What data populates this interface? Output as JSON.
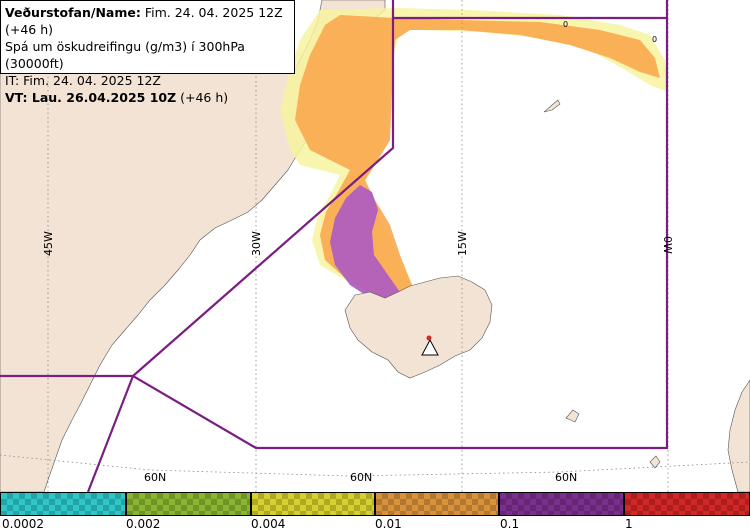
{
  "info": {
    "org_label": "Veðurstofan/Name:",
    "org_value": " Fim. 24. 04. 2025 12Z (+46 h)",
    "forecast_desc": "Spá um öskudreifingu (g/m3) í 300hPa (30000ft)",
    "it_line": "IT: Fim. 24. 04. 2025 12Z",
    "vt_label": "VT: Lau. 26.04.2025 10Z",
    "vt_suffix": " (+46 h)"
  },
  "longitude_labels": [
    "45W",
    "30W",
    "15W",
    "0W"
  ],
  "latitude_labels": [
    "60N",
    "60N",
    "60N"
  ],
  "zero_markers": [
    "0",
    "0"
  ],
  "legend": {
    "ticks": [
      "0.0002",
      "0.002",
      "0.004",
      "0.01",
      "0.1",
      "1"
    ],
    "colors": [
      "#2ec7c9",
      "#8ab530",
      "#d6d02e",
      "#d9913a",
      "#7b2f8c",
      "#d32626"
    ]
  },
  "colors": {
    "land": "#f3e3d5",
    "sea": "#ffffff",
    "boundary": "#7a1f82",
    "ash_low": "#f7f3a0",
    "ash_mid": "#f9a94e",
    "ash_high": "#b05fbf"
  }
}
